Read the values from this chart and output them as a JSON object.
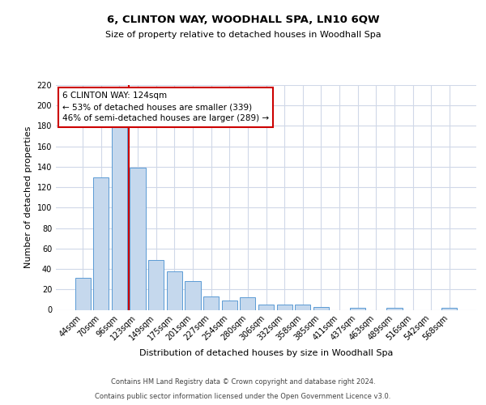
{
  "title1": "6, CLINTON WAY, WOODHALL SPA, LN10 6QW",
  "title2": "Size of property relative to detached houses in Woodhall Spa",
  "xlabel": "Distribution of detached houses by size in Woodhall Spa",
  "ylabel": "Number of detached properties",
  "footnote1": "Contains HM Land Registry data © Crown copyright and database right 2024.",
  "footnote2": "Contains public sector information licensed under the Open Government Licence v3.0.",
  "bar_labels": [
    "44sqm",
    "70sqm",
    "96sqm",
    "123sqm",
    "149sqm",
    "175sqm",
    "201sqm",
    "227sqm",
    "254sqm",
    "280sqm",
    "306sqm",
    "332sqm",
    "358sqm",
    "385sqm",
    "411sqm",
    "437sqm",
    "463sqm",
    "489sqm",
    "516sqm",
    "542sqm",
    "568sqm"
  ],
  "bar_values": [
    31,
    130,
    179,
    139,
    49,
    38,
    28,
    13,
    9,
    12,
    5,
    5,
    5,
    3,
    0,
    2,
    0,
    2,
    0,
    0,
    2
  ],
  "bar_color": "#c5d8ed",
  "bar_edge_color": "#5b9bd5",
  "grid_color": "#d0d8e8",
  "bg_color": "#ffffff",
  "annotation_line1": "6 CLINTON WAY: 124sqm",
  "annotation_line2": "← 53% of detached houses are smaller (339)",
  "annotation_line3": "46% of semi-detached houses are larger (289) →",
  "annotation_box_color": "#ffffff",
  "annotation_box_edge": "#cc0000",
  "vline_color": "#cc0000",
  "ylim": [
    0,
    220
  ],
  "yticks": [
    0,
    20,
    40,
    60,
    80,
    100,
    120,
    140,
    160,
    180,
    200,
    220
  ],
  "title1_fontsize": 9.5,
  "title2_fontsize": 8,
  "ylabel_fontsize": 8,
  "xlabel_fontsize": 8,
  "tick_fontsize": 7,
  "annotation_fontsize": 7.5,
  "footnote_fontsize": 6
}
